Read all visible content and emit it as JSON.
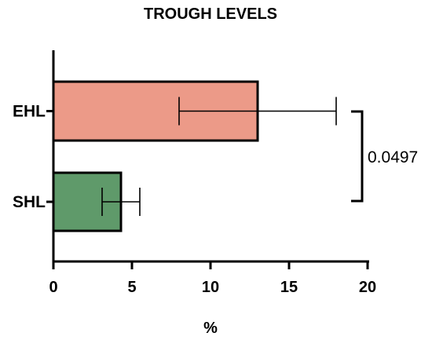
{
  "chart_data": {
    "type": "bar",
    "orientation": "horizontal",
    "title": "TROUGH LEVELS",
    "xlabel": "%",
    "ylabel": "",
    "xlim": [
      0,
      20
    ],
    "x_ticks": [
      "0",
      "5",
      "10",
      "15",
      "20"
    ],
    "categories": [
      "EHL",
      "SHL"
    ],
    "values": [
      13.0,
      4.3
    ],
    "error": [
      5.0,
      1.2
    ],
    "bar_colors": [
      "#ec9a88",
      "#5f9a6a"
    ],
    "grid": false,
    "legend": "none",
    "annotations": [
      {
        "text": "0.0497",
        "between": [
          "EHL",
          "SHL"
        ]
      }
    ]
  }
}
